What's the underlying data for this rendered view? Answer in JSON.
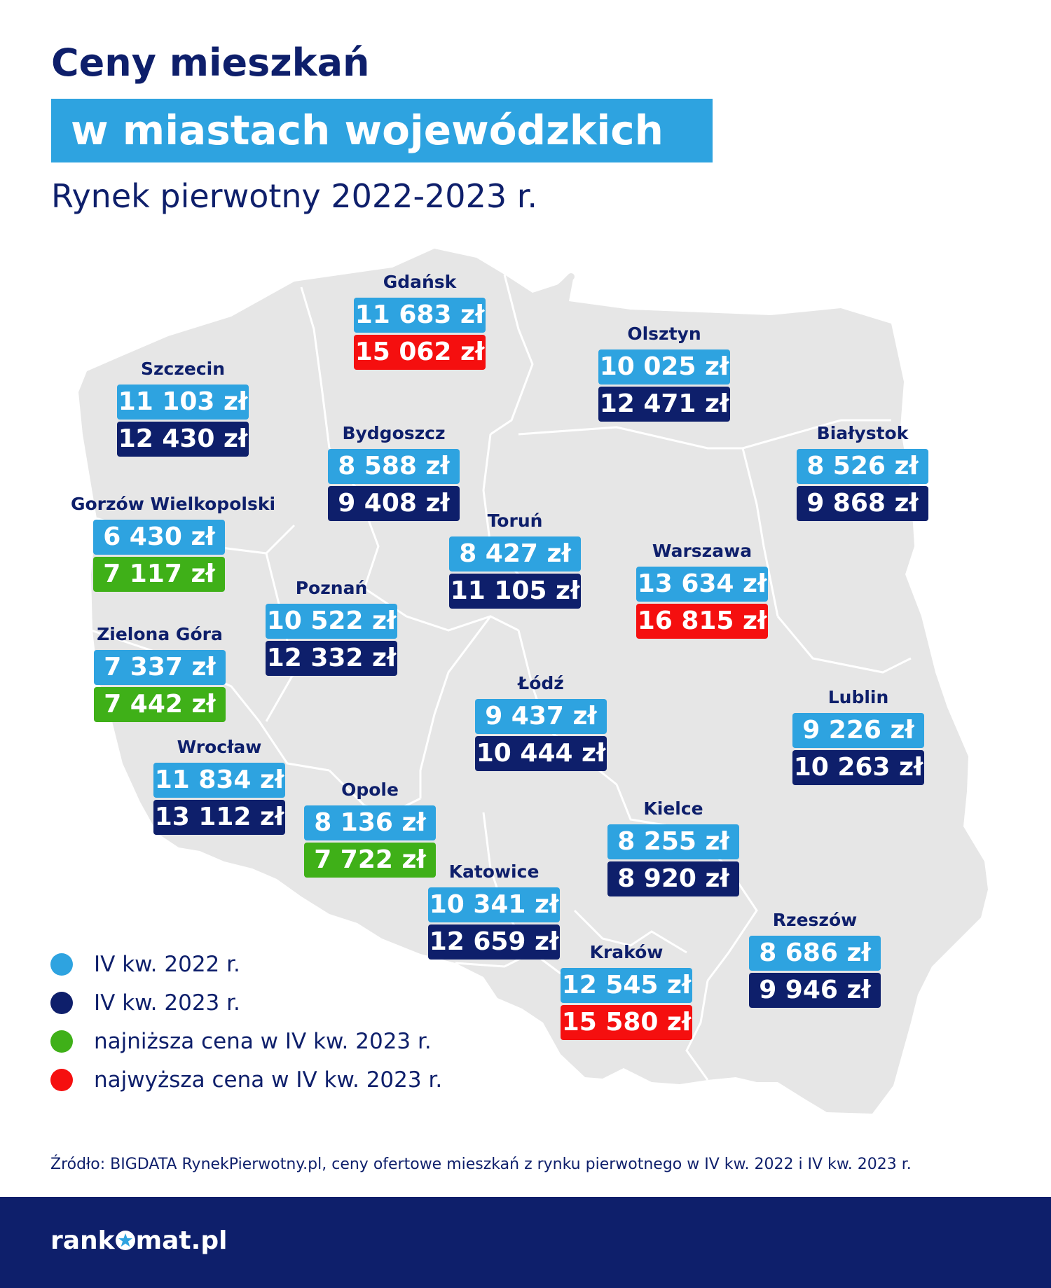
{
  "header": {
    "title_line1": "Ceny mieszkań",
    "title_line2": "w miastach wojewódzkich",
    "subtitle": "Rynek pierwotny 2022-2023 r."
  },
  "colors": {
    "q4_2022": "#2ea3e0",
    "q4_2023": "#0e1f6b",
    "lowest": "#3fb018",
    "highest": "#f50f0f",
    "map_fill": "#e6e6e6"
  },
  "cities": [
    {
      "name": "Gdańsk",
      "price_2022": "11 683 zł",
      "price_2023": "15 062 zł",
      "highlight": "highest"
    },
    {
      "name": "Olsztyn",
      "price_2022": "10 025 zł",
      "price_2023": "12 471 zł",
      "highlight": "none"
    },
    {
      "name": "Szczecin",
      "price_2022": "11 103 zł",
      "price_2023": "12 430 zł",
      "highlight": "none"
    },
    {
      "name": "Bydgoszcz",
      "price_2022": "8 588 zł",
      "price_2023": "9 408 zł",
      "highlight": "none"
    },
    {
      "name": "Białystok",
      "price_2022": "8 526 zł",
      "price_2023": "9 868 zł",
      "highlight": "none"
    },
    {
      "name": "Gorzów Wielkopolski",
      "price_2022": "6 430 zł",
      "price_2023": "7 117 zł",
      "highlight": "lowest"
    },
    {
      "name": "Toruń",
      "price_2022": "8 427 zł",
      "price_2023": "11 105 zł",
      "highlight": "none"
    },
    {
      "name": "Warszawa",
      "price_2022": "13 634 zł",
      "price_2023": "16 815 zł",
      "highlight": "highest"
    },
    {
      "name": "Poznań",
      "price_2022": "10 522 zł",
      "price_2023": "12 332 zł",
      "highlight": "none"
    },
    {
      "name": "Zielona Góra",
      "price_2022": "7 337 zł",
      "price_2023": "7 442 zł",
      "highlight": "lowest"
    },
    {
      "name": "Łódź",
      "price_2022": "9 437 zł",
      "price_2023": "10 444 zł",
      "highlight": "none"
    },
    {
      "name": "Lublin",
      "price_2022": "9 226 zł",
      "price_2023": "10 263 zł",
      "highlight": "none"
    },
    {
      "name": "Wrocław",
      "price_2022": "11 834 zł",
      "price_2023": "13 112 zł",
      "highlight": "none"
    },
    {
      "name": "Opole",
      "price_2022": "8 136 zł",
      "price_2023": "7 722 zł",
      "highlight": "lowest"
    },
    {
      "name": "Kielce",
      "price_2022": "8 255 zł",
      "price_2023": "8 920 zł",
      "highlight": "none"
    },
    {
      "name": "Katowice",
      "price_2022": "10 341 zł",
      "price_2023": "12 659 zł",
      "highlight": "none"
    },
    {
      "name": "Rzeszów",
      "price_2022": "8 686 zł",
      "price_2023": "9 946 zł",
      "highlight": "none"
    },
    {
      "name": "Kraków",
      "price_2022": "12 545 zł",
      "price_2023": "15 580 zł",
      "highlight": "highest"
    }
  ],
  "legend": [
    {
      "label": "IV kw. 2022 r.",
      "color": "#2ea3e0"
    },
    {
      "label": "IV kw. 2023 r.",
      "color": "#0e1f6b"
    },
    {
      "label": "najniższa cena w IV kw. 2023 r.",
      "color": "#3fb018"
    },
    {
      "label": "najwyższa cena w IV kw. 2023 r.",
      "color": "#f50f0f"
    }
  ],
  "source": "Źródło: BIGDATA RynekPierwotny.pl, ceny ofertowe mieszkań z rynku pierwotnego w IV kw. 2022 i IV kw. 2023 r.",
  "footer": {
    "logo_part1": "rank",
    "logo_part2": "mat.pl"
  }
}
